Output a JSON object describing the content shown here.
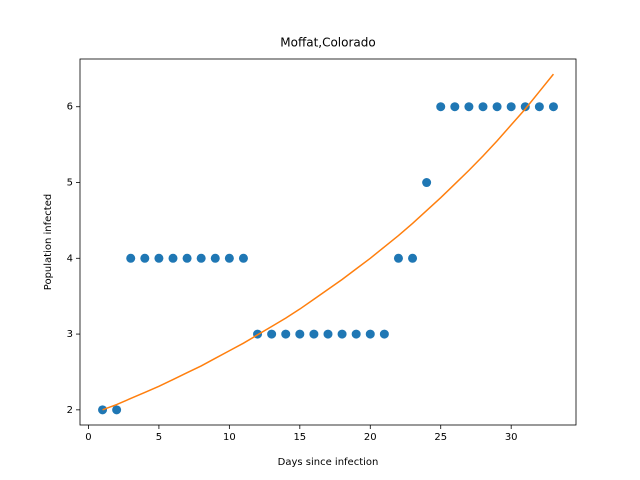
{
  "chart_data": {
    "type": "scatter",
    "title": "Moffat,Colorado",
    "x_label": "Days since infection",
    "y_label": "Population infected",
    "xlim": [
      -0.6,
      34.6
    ],
    "ylim": [
      1.8,
      6.63
    ],
    "xticks": [
      0,
      5,
      10,
      15,
      20,
      25,
      30
    ],
    "yticks": [
      2,
      3,
      4,
      5,
      6
    ],
    "series": [
      {
        "style": "markers",
        "color": "#1f77b4",
        "x": [
          1,
          2,
          3,
          4,
          5,
          6,
          7,
          8,
          9,
          10,
          11,
          12,
          13,
          14,
          15,
          16,
          17,
          18,
          19,
          20,
          21,
          22,
          23,
          24,
          25,
          26,
          27,
          28,
          29,
          30,
          31,
          32,
          33
        ],
        "values": [
          2,
          2,
          4,
          4,
          4,
          4,
          4,
          4,
          4,
          4,
          4,
          3,
          3,
          3,
          3,
          3,
          3,
          3,
          3,
          3,
          3,
          4,
          4,
          5,
          6,
          6,
          6,
          6,
          6,
          6,
          6,
          6,
          6
        ]
      },
      {
        "style": "line",
        "color": "#ff7f0e",
        "x": [
          1,
          2,
          3,
          4,
          5,
          6,
          7,
          8,
          9,
          10,
          11,
          12,
          13,
          14,
          15,
          16,
          17,
          18,
          19,
          20,
          21,
          22,
          23,
          24,
          25,
          26,
          27,
          28,
          29,
          30,
          31,
          32,
          33
        ],
        "values": [
          2.0,
          2.07,
          2.15,
          2.23,
          2.31,
          2.4,
          2.49,
          2.58,
          2.68,
          2.78,
          2.88,
          2.99,
          3.1,
          3.21,
          3.33,
          3.46,
          3.59,
          3.72,
          3.86,
          4.0,
          4.15,
          4.3,
          4.46,
          4.63,
          4.8,
          4.98,
          5.16,
          5.35,
          5.55,
          5.76,
          5.97,
          6.2,
          6.43
        ]
      }
    ]
  }
}
